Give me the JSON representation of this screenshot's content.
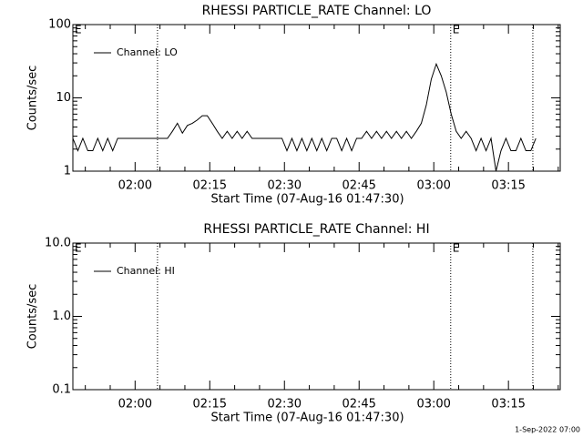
{
  "chart_data": [
    {
      "type": "line",
      "title": "RHESSI PARTICLE_RATE Channel: LO",
      "xlabel": "Start Time (07-Aug-16 01:47:30)",
      "ylabel": "Counts/sec",
      "log_y": true,
      "legend": "upper left",
      "xlim": [
        107.5,
        205.4
      ],
      "ylim": [
        1,
        100
      ],
      "xticks": [
        {
          "value": 120,
          "label": "02:00"
        },
        {
          "value": 135,
          "label": "02:15"
        },
        {
          "value": 150,
          "label": "02:30"
        },
        {
          "value": 165,
          "label": "02:45"
        },
        {
          "value": 180,
          "label": "03:00"
        },
        {
          "value": 195,
          "label": "03:15"
        }
      ],
      "xminorticks": [
        110,
        115,
        125,
        130,
        140,
        145,
        155,
        160,
        170,
        175,
        185,
        190,
        200,
        205
      ],
      "yticks": [
        1,
        10,
        100
      ],
      "yminorticks": [
        2,
        3,
        4,
        5,
        6,
        7,
        8,
        9,
        20,
        30,
        40,
        50,
        60,
        70,
        80,
        90
      ],
      "vlines": [
        124.5,
        183.4,
        199.9
      ],
      "annotations": [
        {
          "text": "E",
          "x": 107.5
        },
        {
          "text": "E",
          "x": 183.4
        }
      ],
      "x": [
        107.5,
        108.5,
        109.5,
        110.5,
        111.5,
        112.5,
        113.5,
        114.5,
        115.5,
        116.5,
        117.5,
        118.5,
        119.5,
        120.5,
        121.5,
        122.5,
        123.5,
        124.5,
        125.5,
        126.5,
        127.5,
        128.5,
        129.5,
        130.5,
        131.5,
        132.5,
        133.5,
        134.5,
        135.5,
        136.5,
        137.5,
        138.5,
        139.5,
        140.5,
        141.5,
        142.5,
        143.5,
        144.5,
        145.5,
        146.5,
        147.5,
        148.5,
        149.5,
        150.5,
        151.5,
        152.5,
        153.5,
        154.5,
        155.5,
        156.5,
        157.5,
        158.5,
        159.5,
        160.5,
        161.5,
        162.5,
        163.5,
        164.5,
        165.5,
        166.5,
        167.5,
        168.5,
        169.5,
        170.5,
        171.5,
        172.5,
        173.5,
        174.5,
        175.5,
        176.5,
        177.5,
        178.5,
        179.5,
        180.5,
        181.5,
        182.5,
        183.5,
        184.5,
        185.5,
        186.5,
        187.5,
        188.5,
        189.5,
        190.5,
        191.5,
        192.5,
        193.5,
        194.5,
        195.5,
        196.5,
        197.5,
        198.5,
        199.5,
        200.5
      ],
      "series": [
        {
          "name": "Channel: LO",
          "color": "#000000",
          "values": [
            2.8,
            1.9,
            2.8,
            1.9,
            1.9,
            2.8,
            1.9,
            2.8,
            1.9,
            2.8,
            2.8,
            2.8,
            2.8,
            2.8,
            2.8,
            2.8,
            2.8,
            2.8,
            2.8,
            2.8,
            3.5,
            4.5,
            3.3,
            4.2,
            4.5,
            5,
            5.7,
            5.7,
            4.5,
            3.5,
            2.8,
            3.5,
            2.8,
            3.5,
            2.8,
            3.5,
            2.8,
            2.8,
            2.8,
            2.8,
            2.8,
            2.8,
            2.8,
            1.9,
            2.8,
            1.9,
            2.8,
            1.9,
            2.8,
            1.9,
            2.8,
            1.9,
            2.8,
            2.8,
            1.9,
            2.8,
            1.9,
            2.8,
            2.8,
            3.5,
            2.8,
            3.5,
            2.8,
            3.5,
            2.8,
            3.5,
            2.8,
            3.5,
            2.8,
            3.5,
            4.5,
            8,
            18,
            29,
            20,
            12,
            6,
            3.5,
            2.8,
            3.5,
            2.8,
            1.9,
            2.8,
            1.9,
            2.8,
            1.0,
            1.9,
            2.8,
            1.9,
            1.9,
            2.8,
            1.9,
            1.9,
            2.8
          ]
        }
      ]
    },
    {
      "type": "line",
      "title": "RHESSI PARTICLE_RATE Channel: HI",
      "xlabel": "Start Time (07-Aug-16 01:47:30)",
      "ylabel": "Counts/sec",
      "log_y": true,
      "legend": "upper left",
      "xlim": [
        107.5,
        205.4
      ],
      "ylim": [
        0.1,
        10
      ],
      "xticks": [
        {
          "value": 120,
          "label": "02:00"
        },
        {
          "value": 135,
          "label": "02:15"
        },
        {
          "value": 150,
          "label": "02:30"
        },
        {
          "value": 165,
          "label": "02:45"
        },
        {
          "value": 180,
          "label": "03:00"
        },
        {
          "value": 195,
          "label": "03:15"
        }
      ],
      "xminorticks": [
        110,
        115,
        125,
        130,
        140,
        145,
        155,
        160,
        170,
        175,
        185,
        190,
        200,
        205
      ],
      "yticks": [
        0.1,
        {
          "value": 1,
          "label": "1.0"
        },
        {
          "value": 10,
          "label": "10.0"
        }
      ],
      "yminorticks": [
        0.2,
        0.3,
        0.4,
        0.5,
        0.6,
        0.7,
        0.8,
        0.9,
        2,
        3,
        4,
        5,
        6,
        7,
        8,
        9
      ],
      "vlines": [
        124.5,
        183.4,
        199.9
      ],
      "annotations": [
        {
          "text": "E",
          "x": 107.5
        },
        {
          "text": "E",
          "x": 183.4
        }
      ],
      "x": [],
      "series": [
        {
          "name": "Channel: HI",
          "color": "#000000",
          "values": []
        }
      ]
    }
  ],
  "footer": "1-Sep-2022 07:00"
}
